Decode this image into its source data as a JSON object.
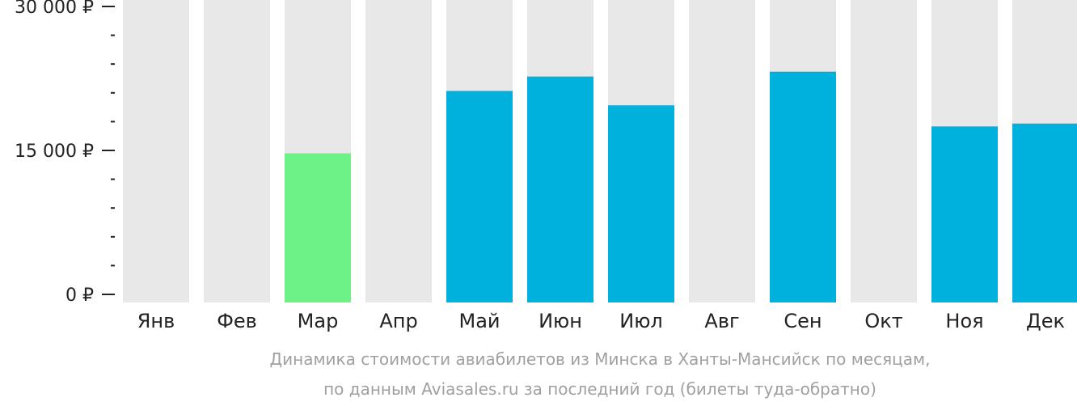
{
  "chart_data": {
    "type": "bar",
    "categories": [
      "Янв",
      "Фев",
      "Мар",
      "Апр",
      "Май",
      "Июн",
      "Июл",
      "Авг",
      "Сен",
      "Окт",
      "Ноя",
      "Дек"
    ],
    "values": [
      null,
      null,
      14700,
      null,
      21200,
      22700,
      19700,
      null,
      23200,
      null,
      17500,
      17800
    ],
    "highlight": [
      "none",
      "none",
      "cheapest",
      "none",
      "normal",
      "normal",
      "normal",
      "none",
      "normal",
      "none",
      "normal",
      "normal"
    ],
    "ylim": [
      0,
      30000
    ],
    "yticks": [
      {
        "value": 0,
        "label": "0 ₽"
      },
      {
        "value": 15000,
        "label": "15 000 ₽"
      },
      {
        "value": 30000,
        "label": "30 000 ₽"
      }
    ],
    "minor_tick_step": 3000,
    "grid": false,
    "colors": {
      "background_bar": "#e8e8e8",
      "bar": "#00b0dd",
      "cheapest_bar": "#6cf286",
      "axis": "#222222"
    }
  },
  "caption": {
    "line1": "Динамика стоимости авиабилетов из Минска в Ханты-Мансийск по месяцам,",
    "line2": "по данным Aviasales.ru за последний год (билеты туда-обратно)"
  }
}
